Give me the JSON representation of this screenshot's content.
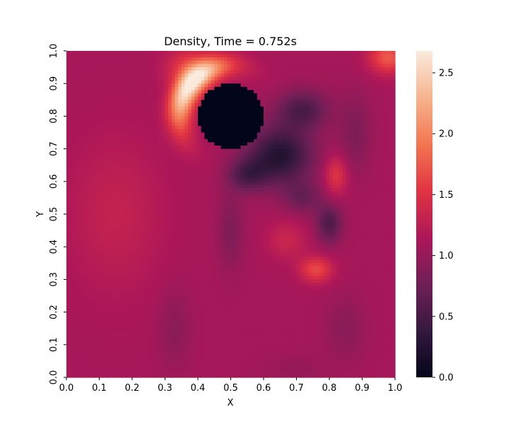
{
  "chart_data": {
    "type": "heatmap",
    "title": "Density, Time = 0.752s",
    "xlabel": "X",
    "ylabel": "Y",
    "xlim": [
      0.0,
      1.0
    ],
    "ylim": [
      0.0,
      1.0
    ],
    "x_ticks": [
      "0.0",
      "0.1",
      "0.2",
      "0.3",
      "0.4",
      "0.5",
      "0.6",
      "0.7",
      "0.8",
      "0.9",
      "1.0"
    ],
    "y_ticks": [
      "0.0",
      "0.1",
      "0.2",
      "0.3",
      "0.4",
      "0.5",
      "0.6",
      "0.7",
      "0.8",
      "0.9",
      "1.0"
    ],
    "colorbar": {
      "range": [
        0.0,
        2.68
      ],
      "ticks": [
        0.0,
        0.5,
        1.0,
        1.5,
        2.0,
        2.5
      ],
      "tick_labels": [
        "0.0",
        "0.5",
        "1.0",
        "1.5",
        "2.0",
        "2.5"
      ],
      "colormap": "rocket",
      "colormap_stops": [
        "#03051a",
        "#35193e",
        "#701f57",
        "#ad1759",
        "#e13342",
        "#f37651",
        "#f6b48f",
        "#faebdd"
      ]
    },
    "grid": false,
    "legend": "none",
    "features": [
      {
        "kind": "background",
        "value": 1.1
      },
      {
        "kind": "solid_obstacle",
        "center": [
          0.5,
          0.8
        ],
        "radius": 0.1,
        "value": 0.0
      },
      {
        "kind": "high_density_arc",
        "center": [
          0.36,
          0.84
        ],
        "peak": 2.68
      },
      {
        "kind": "high_density_spot",
        "center": [
          0.76,
          0.33
        ],
        "peak": 1.6
      },
      {
        "kind": "high_density_spot",
        "center": [
          0.82,
          0.62
        ],
        "peak": 1.5
      },
      {
        "kind": "high_density_spot",
        "center": [
          0.97,
          0.98
        ],
        "peak": 1.7
      },
      {
        "kind": "low_density_wake",
        "center": [
          0.65,
          0.68
        ],
        "min": 0.25
      },
      {
        "kind": "low_density_spot",
        "center": [
          0.8,
          0.47
        ],
        "min": 0.4
      },
      {
        "kind": "low_density_band",
        "center": [
          0.3,
          0.15
        ],
        "min": 0.8
      }
    ]
  }
}
